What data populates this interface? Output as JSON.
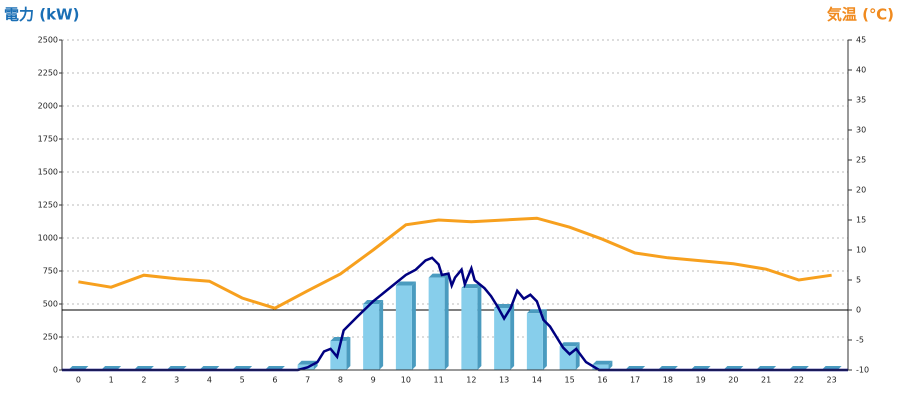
{
  "chart_data": {
    "type": "bar-line",
    "y_title": "電力 (kW)",
    "y2_title": "気温 (℃)",
    "categories": [
      "0",
      "1",
      "2",
      "3",
      "4",
      "5",
      "6",
      "7",
      "8",
      "9",
      "10",
      "11",
      "12",
      "13",
      "14",
      "15",
      "16",
      "17",
      "18",
      "19",
      "20",
      "21",
      "22",
      "23"
    ],
    "ylim": [
      0,
      2500
    ],
    "yticks": [
      0,
      250,
      500,
      750,
      1000,
      1250,
      1500,
      1750,
      2000,
      2250,
      2500
    ],
    "y2lim": [
      -10,
      45
    ],
    "y2ticks": [
      -10,
      -5,
      0,
      5,
      10,
      15,
      20,
      25,
      30,
      35,
      40,
      45
    ],
    "xlim": [
      -0.5,
      23.5
    ],
    "grid": true,
    "zero_line_y2": true,
    "series": [
      {
        "kind": "bar3d",
        "color": "#87ceeb",
        "side_color": "#4a9bbf",
        "values": [
          0,
          0,
          0,
          0,
          0,
          0,
          0,
          40,
          220,
          500,
          640,
          700,
          620,
          470,
          430,
          180,
          40,
          0,
          0,
          0,
          0,
          0,
          0,
          0
        ]
      },
      {
        "kind": "line",
        "axis": "y2",
        "color": "#f7a01e",
        "values": [
          4.7,
          3.8,
          5.8,
          5.2,
          4.8,
          2.0,
          0.3,
          3.2,
          6.0,
          10.0,
          14.2,
          15.0,
          14.7,
          15.0,
          15.3,
          13.8,
          11.8,
          9.5,
          8.7,
          8.2,
          7.7,
          6.8,
          5.0,
          5.8
        ]
      },
      {
        "kind": "xyline",
        "color": "#000080",
        "x": [
          -0.5,
          6.7,
          7,
          7.3,
          7.5,
          7.7,
          7.9,
          8.1,
          8.5,
          9,
          9.5,
          10,
          10.3,
          10.6,
          10.8,
          11,
          11.1,
          11.3,
          11.4,
          11.5,
          11.7,
          11.8,
          12,
          12.1,
          12.4,
          12.6,
          12.8,
          13,
          13.2,
          13.4,
          13.6,
          13.8,
          14,
          14.2,
          14.4,
          14.6,
          14.8,
          15,
          15.2,
          15.5,
          15.9,
          23.5
        ],
        "values": [
          0,
          0,
          20,
          60,
          140,
          160,
          100,
          300,
          400,
          520,
          620,
          720,
          760,
          830,
          850,
          800,
          720,
          730,
          640,
          700,
          760,
          650,
          770,
          680,
          620,
          560,
          480,
          390,
          470,
          600,
          540,
          570,
          520,
          380,
          330,
          250,
          170,
          120,
          160,
          60,
          0,
          0
        ]
      }
    ]
  }
}
